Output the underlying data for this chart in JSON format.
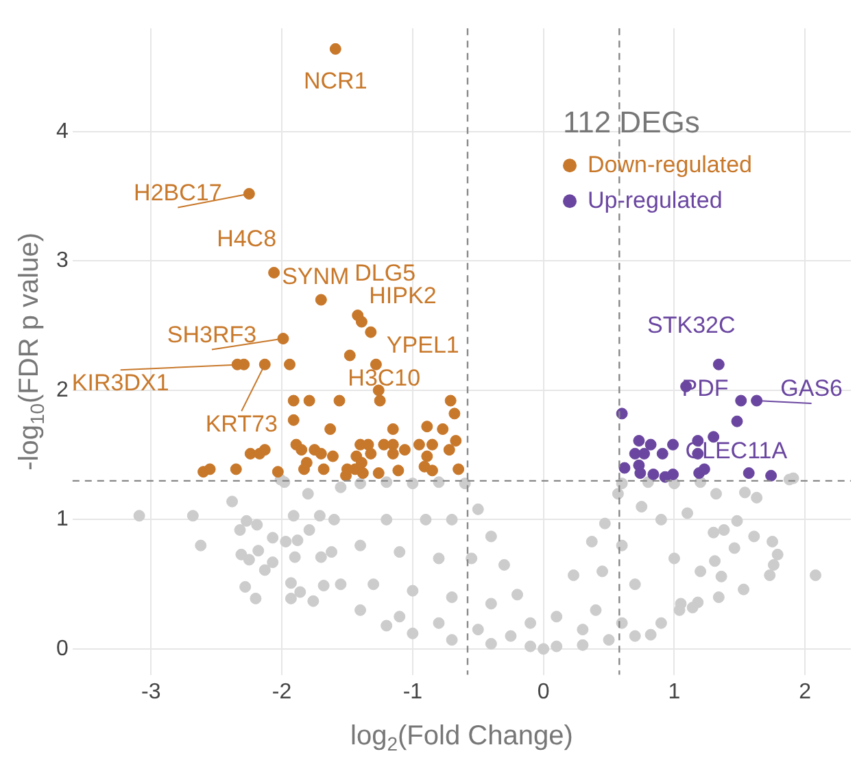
{
  "chart_data": {
    "type": "scatter",
    "xlabel": "log$_{2}$(Fold Change)",
    "ylabel": "-log$_{10}$(FDR p value)",
    "legend_title": "112 DEGs",
    "legend": "top right",
    "grid": true,
    "marker": "circle",
    "xlim": [
      -3.6,
      2.35
    ],
    "xticks": [
      -3,
      -2,
      -1,
      0,
      1,
      2
    ],
    "ylim": [
      -0.2,
      4.8
    ],
    "yticks": [
      0,
      1,
      2,
      3,
      4
    ],
    "ref_lines": [
      {
        "axis": "x",
        "value": -0.58,
        "color": "#888888",
        "line_style": "dashed"
      },
      {
        "axis": "x",
        "value": 0.58,
        "color": "#888888",
        "line_style": "dashed"
      },
      {
        "axis": "y",
        "value": 1.3,
        "color": "#888888",
        "line_style": "dashed"
      }
    ],
    "series": [
      {
        "name": "Down-regulated",
        "color": "#c8782a",
        "x": [
          -1.59,
          -2.25,
          -2.06,
          -1.7,
          -1.42,
          -1.39,
          -1.32,
          -1.99,
          -1.48,
          -2.34,
          -2.29,
          -2.13,
          -1.94,
          -1.28,
          -1.26,
          -1.91,
          -1.79,
          -1.56,
          -1.25,
          -1.91,
          -1.63,
          -1.15,
          -0.71,
          -0.68,
          -0.89,
          -0.77,
          -1.89,
          -1.85,
          -2.24,
          -2.17,
          -2.13,
          -1.75,
          -1.7,
          -1.61,
          -1.43,
          -1.4,
          -1.34,
          -1.32,
          -1.22,
          -1.15,
          -1.15,
          -1.06,
          -0.95,
          -0.85,
          -0.89,
          -0.72,
          -0.67,
          -2.6,
          -2.55,
          -2.35,
          -2.03,
          -1.83,
          -1.81,
          -1.68,
          -1.51,
          -1.5,
          -1.44,
          -1.39,
          -1.38,
          -1.26,
          -1.11,
          -0.91,
          -0.85,
          -0.65
        ],
        "values": [
          4.64,
          3.52,
          2.91,
          2.7,
          2.58,
          2.53,
          2.45,
          2.4,
          2.27,
          2.2,
          2.2,
          2.2,
          2.2,
          2.2,
          2.0,
          1.92,
          1.92,
          1.92,
          1.92,
          1.77,
          1.7,
          1.7,
          1.92,
          1.82,
          1.72,
          1.7,
          1.58,
          1.54,
          1.51,
          1.51,
          1.54,
          1.54,
          1.51,
          1.49,
          1.49,
          1.58,
          1.58,
          1.51,
          1.58,
          1.58,
          1.51,
          1.54,
          1.58,
          1.58,
          1.49,
          1.54,
          1.61,
          1.37,
          1.39,
          1.39,
          1.37,
          1.39,
          1.44,
          1.39,
          1.34,
          1.39,
          1.39,
          1.44,
          1.36,
          1.36,
          1.38,
          1.41,
          1.38,
          1.39
        ]
      },
      {
        "name": "Up-regulated",
        "color": "#6a46a0",
        "x": [
          1.34,
          1.09,
          1.51,
          1.63,
          1.48,
          0.6,
          1.3,
          0.73,
          0.82,
          0.99,
          1.18,
          0.7,
          0.77,
          0.91,
          1.18,
          0.62,
          0.73,
          0.74,
          0.84,
          0.93,
          0.99,
          1.19,
          1.23,
          1.57,
          1.74
        ],
        "values": [
          2.2,
          2.03,
          1.92,
          1.92,
          1.76,
          1.82,
          1.64,
          1.61,
          1.58,
          1.58,
          1.61,
          1.51,
          1.51,
          1.51,
          1.51,
          1.4,
          1.42,
          1.36,
          1.35,
          1.33,
          1.35,
          1.36,
          1.39,
          1.36,
          1.34
        ]
      },
      {
        "color": "#cccccc",
        "x": [
          -3.09,
          -2.68,
          -2.62,
          -2.38,
          -2.32,
          -2.27,
          -2.19,
          -2.31,
          -2.25,
          -2.18,
          -2.07,
          -2.07,
          -2.13,
          -2.28,
          -2.2,
          -1.97,
          -1.91,
          -1.88,
          -1.79,
          -1.9,
          -1.93,
          -1.93,
          -1.86,
          -1.76,
          -1.71,
          -1.8,
          -1.98,
          -2.01,
          -1.7,
          -1.68,
          -1.55,
          -1.6,
          -1.62,
          -1.55,
          -1.4,
          -1.2,
          -1.0,
          -0.7,
          -0.4,
          -0.1,
          0.0,
          -0.1,
          -0.2,
          -0.3,
          -0.4,
          -0.5,
          -0.6,
          -0.8,
          -1.0,
          -1.2,
          -1.4,
          -1.2,
          -0.9,
          -0.7,
          -1.4,
          -1.1,
          -0.8,
          -0.55,
          -1.3,
          -1.0,
          -0.7,
          -0.4,
          -1.1,
          -0.8,
          -0.5,
          -0.25,
          0.1,
          0.3,
          0.5,
          0.7,
          0.9,
          1.05,
          1.2,
          1.3,
          1.32,
          1.2,
          1.0,
          0.8,
          0.6,
          0.57,
          0.47,
          0.37,
          0.23,
          0.1,
          0.4,
          0.7,
          1.0,
          0.6,
          0.9,
          1.1,
          0.75,
          0.45,
          0.3,
          0.6,
          1.88,
          1.91,
          1.54,
          1.63,
          1.48,
          1.61,
          1.75,
          1.79,
          1.76,
          1.73,
          2.08,
          1.53,
          1.34,
          1.36,
          1.18,
          1.14,
          1.04,
          0.82,
          1.46,
          1.31,
          1.38
        ],
        "values": [
          1.03,
          1.03,
          0.8,
          1.14,
          0.92,
          0.99,
          0.96,
          0.73,
          0.69,
          0.76,
          0.86,
          0.67,
          0.61,
          0.48,
          0.39,
          0.83,
          1.03,
          0.84,
          0.92,
          0.71,
          0.51,
          0.39,
          0.44,
          0.37,
          1.03,
          1.2,
          1.29,
          1.31,
          0.71,
          0.49,
          1.25,
          1.0,
          0.75,
          0.5,
          0.3,
          0.18,
          0.12,
          0.07,
          0.04,
          0.02,
          0.0,
          0.2,
          0.42,
          0.65,
          0.87,
          1.08,
          1.28,
          1.29,
          1.28,
          1.29,
          1.28,
          1.0,
          1.0,
          1.0,
          0.8,
          0.75,
          0.7,
          0.7,
          0.5,
          0.45,
          0.4,
          0.35,
          0.25,
          0.2,
          0.15,
          0.1,
          0.02,
          0.03,
          0.07,
          0.1,
          0.2,
          0.35,
          0.6,
          0.9,
          1.2,
          1.29,
          1.28,
          1.29,
          1.28,
          1.2,
          0.97,
          0.83,
          0.57,
          0.25,
          0.3,
          0.5,
          0.7,
          0.8,
          1.0,
          1.05,
          1.1,
          0.6,
          0.15,
          0.2,
          1.31,
          1.32,
          1.21,
          1.17,
          0.99,
          0.87,
          0.83,
          0.73,
          0.65,
          0.57,
          0.57,
          0.46,
          0.4,
          0.56,
          0.36,
          0.32,
          0.3,
          0.11,
          0.78,
          0.68,
          0.92
        ]
      }
    ],
    "annotations": [
      {
        "text": "NCR1",
        "x": -1.59,
        "y": 4.64
      },
      {
        "text": "H2BC17",
        "x": -2.25,
        "y": 3.52
      },
      {
        "text": "H4C8",
        "x": -2.06,
        "y": 2.91
      },
      {
        "text": "SYNM",
        "x": -1.7,
        "y": 2.7
      },
      {
        "text": "DLG5",
        "x": -1.42,
        "y": 2.58
      },
      {
        "text": "HIPK2",
        "x": -1.39,
        "y": 2.53
      },
      {
        "text": "YPEL1",
        "x": -1.32,
        "y": 2.45
      },
      {
        "text": "SH3RF3",
        "x": -1.99,
        "y": 2.4
      },
      {
        "text": "KIR3DX1",
        "x": -2.29,
        "y": 2.2
      },
      {
        "text": "KRT73",
        "x": -2.13,
        "y": 2.2
      },
      {
        "text": "H3C10",
        "x": -1.26,
        "y": 2.0
      },
      {
        "text": "STK32C",
        "x": 1.34,
        "y": 2.2
      },
      {
        "text": "PDF",
        "x": 1.09,
        "y": 2.03
      },
      {
        "text": "GAS6",
        "x": 1.63,
        "y": 1.92
      },
      {
        "text": "CLEC11A",
        "x": 1.18,
        "y": 1.61
      }
    ]
  }
}
